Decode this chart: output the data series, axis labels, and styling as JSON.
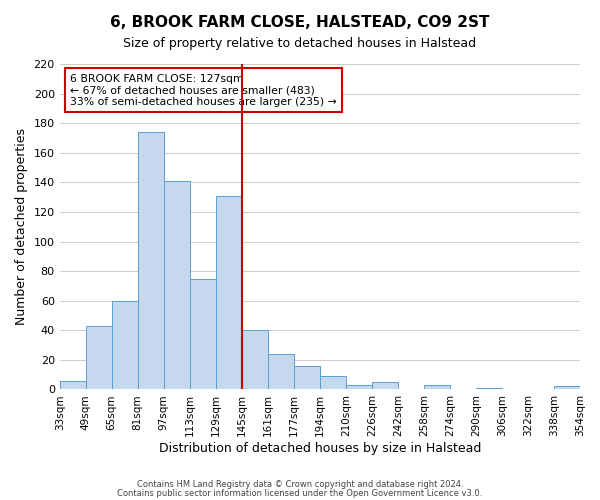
{
  "title": "6, BROOK FARM CLOSE, HALSTEAD, CO9 2ST",
  "subtitle": "Size of property relative to detached houses in Halstead",
  "xlabel": "Distribution of detached houses by size in Halstead",
  "ylabel": "Number of detached properties",
  "bar_color": "#c5d8ed",
  "bar_edge_color": "#5a9fd4",
  "tick_labels": [
    "33sqm",
    "49sqm",
    "65sqm",
    "81sqm",
    "97sqm",
    "113sqm",
    "129sqm",
    "145sqm",
    "161sqm",
    "177sqm",
    "194sqm",
    "210sqm",
    "226sqm",
    "242sqm",
    "258sqm",
    "274sqm",
    "290sqm",
    "306sqm",
    "322sqm",
    "338sqm",
    "354sqm"
  ],
  "values": [
    6,
    43,
    60,
    174,
    141,
    75,
    131,
    40,
    24,
    16,
    9,
    3,
    5,
    0,
    3,
    0,
    1,
    0,
    0,
    2
  ],
  "vline_x_index": 6,
  "annotation_title": "6 BROOK FARM CLOSE: 127sqm",
  "annotation_line1": "← 67% of detached houses are smaller (483)",
  "annotation_line2": "33% of semi-detached houses are larger (235) →",
  "ylim": [
    0,
    220
  ],
  "yticks": [
    0,
    20,
    40,
    60,
    80,
    100,
    120,
    140,
    160,
    180,
    200,
    220
  ],
  "footer1": "Contains HM Land Registry data © Crown copyright and database right 2024.",
  "footer2": "Contains public sector information licensed under the Open Government Licence v3.0.",
  "background_color": "#ffffff",
  "grid_color": "#cccccc",
  "vline_color": "#cc0000",
  "annotation_box_edge": "#cc0000",
  "annotation_box_bg": "#ffffff"
}
